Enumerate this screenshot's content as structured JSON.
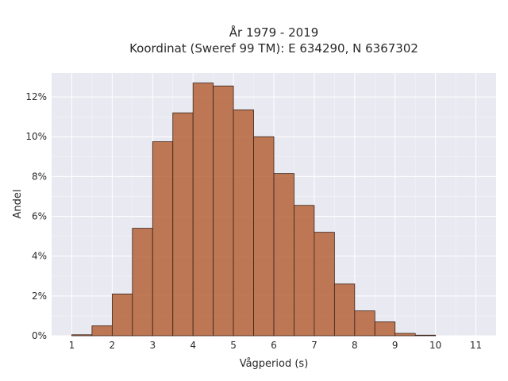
{
  "chart_data": {
    "type": "bar",
    "title_line1": "År 1979 - 2019",
    "title_line2": "Koordinat (Sweref 99 TM): E 634290, N 6367302",
    "xlabel": "Vågperiod (s)",
    "ylabel": "Andel",
    "xlim": [
      0.5,
      11.5
    ],
    "ylim": [
      0,
      13.2
    ],
    "xticks": [
      1,
      2,
      3,
      4,
      5,
      6,
      7,
      8,
      9,
      10,
      11
    ],
    "yticks": [
      0,
      2,
      4,
      6,
      8,
      10,
      12
    ],
    "ytick_labels": [
      "0%",
      "2%",
      "4%",
      "6%",
      "8%",
      "10%",
      "12%"
    ],
    "bin_width": 0.5,
    "bins": [
      {
        "start": 1.0,
        "value": 0.05
      },
      {
        "start": 1.5,
        "value": 0.5
      },
      {
        "start": 2.0,
        "value": 2.1
      },
      {
        "start": 2.5,
        "value": 5.4
      },
      {
        "start": 3.0,
        "value": 9.75
      },
      {
        "start": 3.5,
        "value": 11.2
      },
      {
        "start": 4.0,
        "value": 12.7
      },
      {
        "start": 4.5,
        "value": 12.55
      },
      {
        "start": 5.0,
        "value": 11.35
      },
      {
        "start": 5.5,
        "value": 10.0
      },
      {
        "start": 6.0,
        "value": 8.15
      },
      {
        "start": 6.5,
        "value": 6.55
      },
      {
        "start": 7.0,
        "value": 5.2
      },
      {
        "start": 7.5,
        "value": 2.6
      },
      {
        "start": 8.0,
        "value": 1.25
      },
      {
        "start": 8.5,
        "value": 0.7
      },
      {
        "start": 9.0,
        "value": 0.12
      },
      {
        "start": 9.5,
        "value": 0.03
      }
    ],
    "grid": true,
    "colors": {
      "bar_fill": "#b5633a",
      "bar_edge": "#3b2418",
      "plot_background": "#e9e9f1",
      "grid": "#ffffff"
    }
  }
}
